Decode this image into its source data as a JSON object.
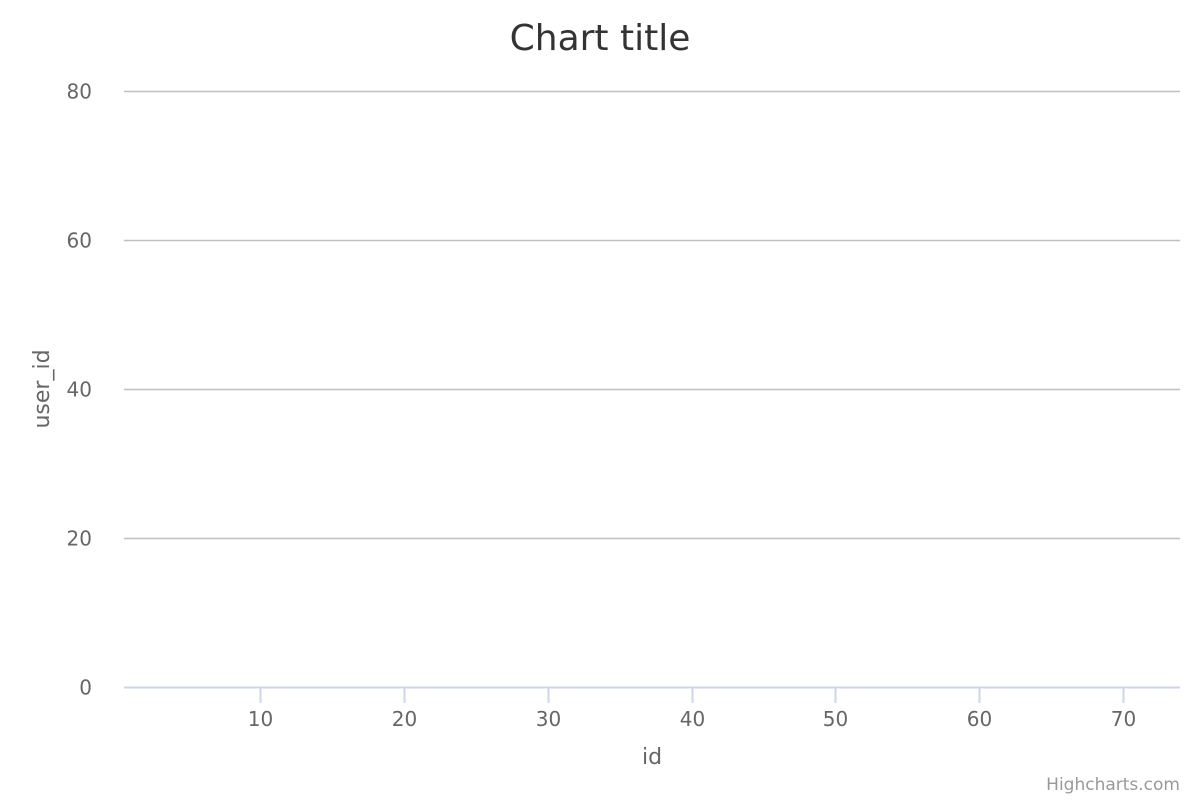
{
  "chart_data": {
    "type": "scatter",
    "title": "Chart title",
    "xlabel": "id",
    "ylabel": "user_id",
    "x_ticks": [
      10,
      20,
      30,
      40,
      50,
      60,
      70
    ],
    "y_ticks": [
      0,
      20,
      40,
      60,
      80
    ],
    "xlim": [
      0.5,
      74
    ],
    "ylim": [
      0,
      80
    ],
    "grid": true,
    "series": [],
    "colors": {
      "grid": "#c0c0c0",
      "axis": "#ccd6eb",
      "title": "#333333",
      "labels": "#666666",
      "credits": "#999999"
    }
  },
  "credits": {
    "label": "Highcharts.com"
  }
}
